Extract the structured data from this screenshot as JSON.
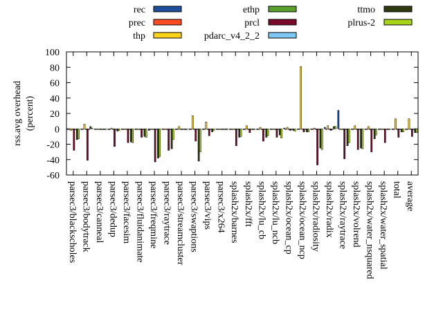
{
  "chart_data": {
    "type": "bar",
    "ylabel": "rss.avg overhead",
    "ylabel2": "(percent)",
    "ylim": [
      -60,
      100
    ],
    "yticks": [
      -60,
      -40,
      -20,
      0,
      20,
      40,
      60,
      80,
      100
    ],
    "legend_position": "top",
    "categories": [
      "parsec3/blackscholes",
      "parsec3/bodytrack",
      "parsec3/canneal",
      "parsec3/dedup",
      "parsec3/facesim",
      "parsec3/fluidanimate",
      "parsec3/freqmine",
      "parsec3/raytrace",
      "parsec3/streamcluster",
      "parsec3/swaptions",
      "parsec3/vips",
      "parsec3/x264",
      "splash2x/barnes",
      "splash2x/fft",
      "splash2x/lu_cb",
      "splash2x/lu_ncb",
      "splash2x/ocean_cp",
      "splash2x/ocean_ncp",
      "splash2x/radiosity",
      "splash2x/radix",
      "splash2x/raytrace",
      "splash2x/volrend",
      "splash2x/water_nsquared",
      "splash2x/water_spatial",
      "total",
      "average"
    ],
    "series": [
      {
        "name": "rec",
        "color": "#1f4e9c",
        "values": [
          -1,
          -1,
          0,
          -1,
          -1,
          -1,
          -2,
          -1,
          -1,
          -1,
          -1,
          0,
          -1,
          -1,
          -1,
          -1,
          1,
          0,
          -1,
          2,
          24,
          0,
          0,
          -1,
          -1,
          -1
        ]
      },
      {
        "name": "prec",
        "color": "#ff4b1f",
        "values": [
          0,
          0,
          0,
          0,
          0,
          0,
          0,
          0,
          0,
          0,
          0,
          0,
          0,
          0,
          0,
          0,
          0,
          0,
          0,
          0,
          0,
          0,
          0,
          0,
          0,
          0
        ]
      },
      {
        "name": "thp",
        "color": "#ffd21a",
        "values": [
          -2,
          6,
          0,
          1,
          0,
          0,
          0,
          0,
          3,
          17,
          9,
          0,
          0,
          4,
          2,
          0,
          2,
          81,
          1,
          4,
          0,
          4,
          3,
          0,
          13,
          13
        ]
      },
      {
        "name": "ethp",
        "color": "#5aa02c",
        "values": [
          0,
          0,
          0,
          0,
          0,
          0,
          0,
          0,
          0,
          0,
          0,
          0,
          0,
          0,
          0,
          0,
          0,
          0,
          0,
          0,
          0,
          0,
          0,
          0,
          0,
          0
        ]
      },
      {
        "name": "prcl",
        "color": "#7a0a2a",
        "values": [
          -28,
          -41,
          -1,
          -23,
          -18,
          -11,
          -43,
          -28,
          -1,
          -16,
          -9,
          -1,
          -22,
          -5,
          -16,
          -11,
          -2,
          -4,
          -47,
          -2,
          -39,
          -27,
          -30,
          -18,
          -11,
          -10
        ]
      },
      {
        "name": "pdarc_v4_2_2",
        "color": "#7ec8f5",
        "values": [
          0,
          0,
          0,
          0,
          0,
          0,
          0,
          0,
          0,
          0,
          0,
          0,
          0,
          0,
          0,
          0,
          0,
          0,
          0,
          0,
          0,
          0,
          0,
          0,
          0,
          0
        ]
      },
      {
        "name": "ttmo",
        "color": "#2f3a10",
        "values": [
          -14,
          3,
          -1,
          -3,
          -17,
          -10,
          -38,
          -26,
          -1,
          -42,
          -4,
          -1,
          -11,
          -1,
          -11,
          -8,
          -2,
          -4,
          -25,
          3,
          -22,
          -25,
          -13,
          -1,
          -4,
          -5
        ]
      },
      {
        "name": "plrus-2",
        "color": "#a8d418",
        "values": [
          -13,
          1,
          -1,
          -2,
          -18,
          -11,
          -36,
          -14,
          -1,
          -30,
          -2,
          -1,
          -10,
          -1,
          -9,
          -12,
          -3,
          -4,
          -27,
          3,
          -18,
          -26,
          -8,
          -1,
          -4,
          -5
        ]
      }
    ]
  }
}
